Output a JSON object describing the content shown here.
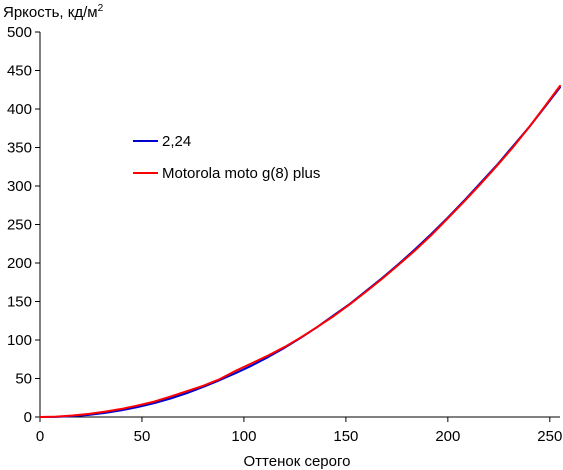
{
  "chart_data": {
    "type": "line",
    "ylabel": "Яркость, кд/м",
    "ylabel_superscript": "2",
    "xlabel": "Оттенок серого",
    "xlim": [
      0,
      255
    ],
    "ylim": [
      0,
      500
    ],
    "x_ticks": [
      0,
      50,
      100,
      150,
      200,
      250
    ],
    "x_tick_labels": [
      "0",
      "50",
      "100",
      "150",
      "200",
      "250"
    ],
    "y_ticks": [
      0,
      50,
      100,
      150,
      200,
      250,
      300,
      350,
      400,
      450,
      500
    ],
    "y_tick_labels": [
      "0",
      "50",
      "100",
      "150",
      "200",
      "250",
      "300",
      "350",
      "400",
      "450",
      "500"
    ],
    "grid": false,
    "legend_position": "center-left",
    "series": [
      {
        "name": "2,24",
        "color": "#0000cc",
        "x": [
          0,
          8,
          16,
          24,
          32,
          40,
          48,
          56,
          64,
          72,
          80,
          88,
          96,
          104,
          112,
          120,
          128,
          136,
          144,
          152,
          160,
          168,
          176,
          184,
          192,
          200,
          208,
          216,
          224,
          232,
          240,
          248,
          255
        ],
        "y": [
          0,
          0.2,
          1.1,
          2.8,
          5.3,
          8.7,
          12.9,
          18,
          24,
          31,
          39,
          47.7,
          57,
          67,
          78,
          90,
          103,
          117,
          132,
          147,
          164,
          181,
          199,
          218,
          238,
          259,
          281,
          304,
          327,
          352,
          377,
          404,
          428
        ]
      },
      {
        "name": "Motorola moto g(8) plus",
        "color": "#ff0000",
        "x": [
          0,
          8,
          16,
          24,
          32,
          40,
          48,
          56,
          64,
          72,
          80,
          88,
          96,
          104,
          112,
          120,
          128,
          136,
          144,
          152,
          160,
          168,
          176,
          184,
          192,
          200,
          208,
          216,
          224,
          232,
          240,
          248,
          255
        ],
        "y": [
          0,
          0.5,
          2,
          4,
          7,
          10.5,
          15,
          20,
          26.5,
          33.5,
          40.5,
          49,
          60,
          70,
          80,
          91,
          103.5,
          117,
          131,
          146.5,
          163,
          180,
          198,
          216.5,
          236.5,
          258,
          280,
          302.5,
          326,
          350.5,
          377,
          405,
          430
        ]
      }
    ]
  }
}
